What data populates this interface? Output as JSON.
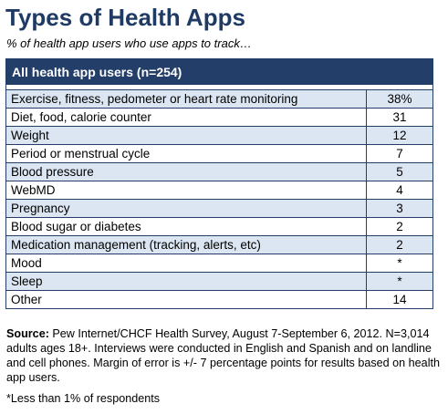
{
  "header": {
    "title": "Types of Health Apps",
    "subtitle": "% of health app users who use apps to track…"
  },
  "table": {
    "heading": "All health app users (n=254)",
    "rows": [
      [
        "Exercise, fitness, pedometer or heart rate monitoring",
        "38%"
      ],
      [
        "Diet, food, calorie counter",
        "31"
      ],
      [
        "Weight",
        "12"
      ],
      [
        "Period or menstrual cycle",
        "7"
      ],
      [
        "Blood pressure",
        "5"
      ],
      [
        "WebMD",
        "4"
      ],
      [
        "Pregnancy",
        "3"
      ],
      [
        "Blood sugar or diabetes",
        "2"
      ],
      [
        "Medication management (tracking, alerts, etc)",
        "2"
      ],
      [
        "Mood",
        "*"
      ],
      [
        "Sleep",
        "*"
      ],
      [
        "Other",
        "14"
      ]
    ]
  },
  "source": {
    "label": "Source:",
    "text": "Pew Internet/CHCF Health Survey, August 7-September 6, 2012. N=3,014 adults ages 18+. Interviews were conducted in English and Spanish and on landline and cell phones. Margin of error is +/- 7 percentage points for results based on health app users."
  },
  "footnote": "*Less than 1% of respondents"
}
